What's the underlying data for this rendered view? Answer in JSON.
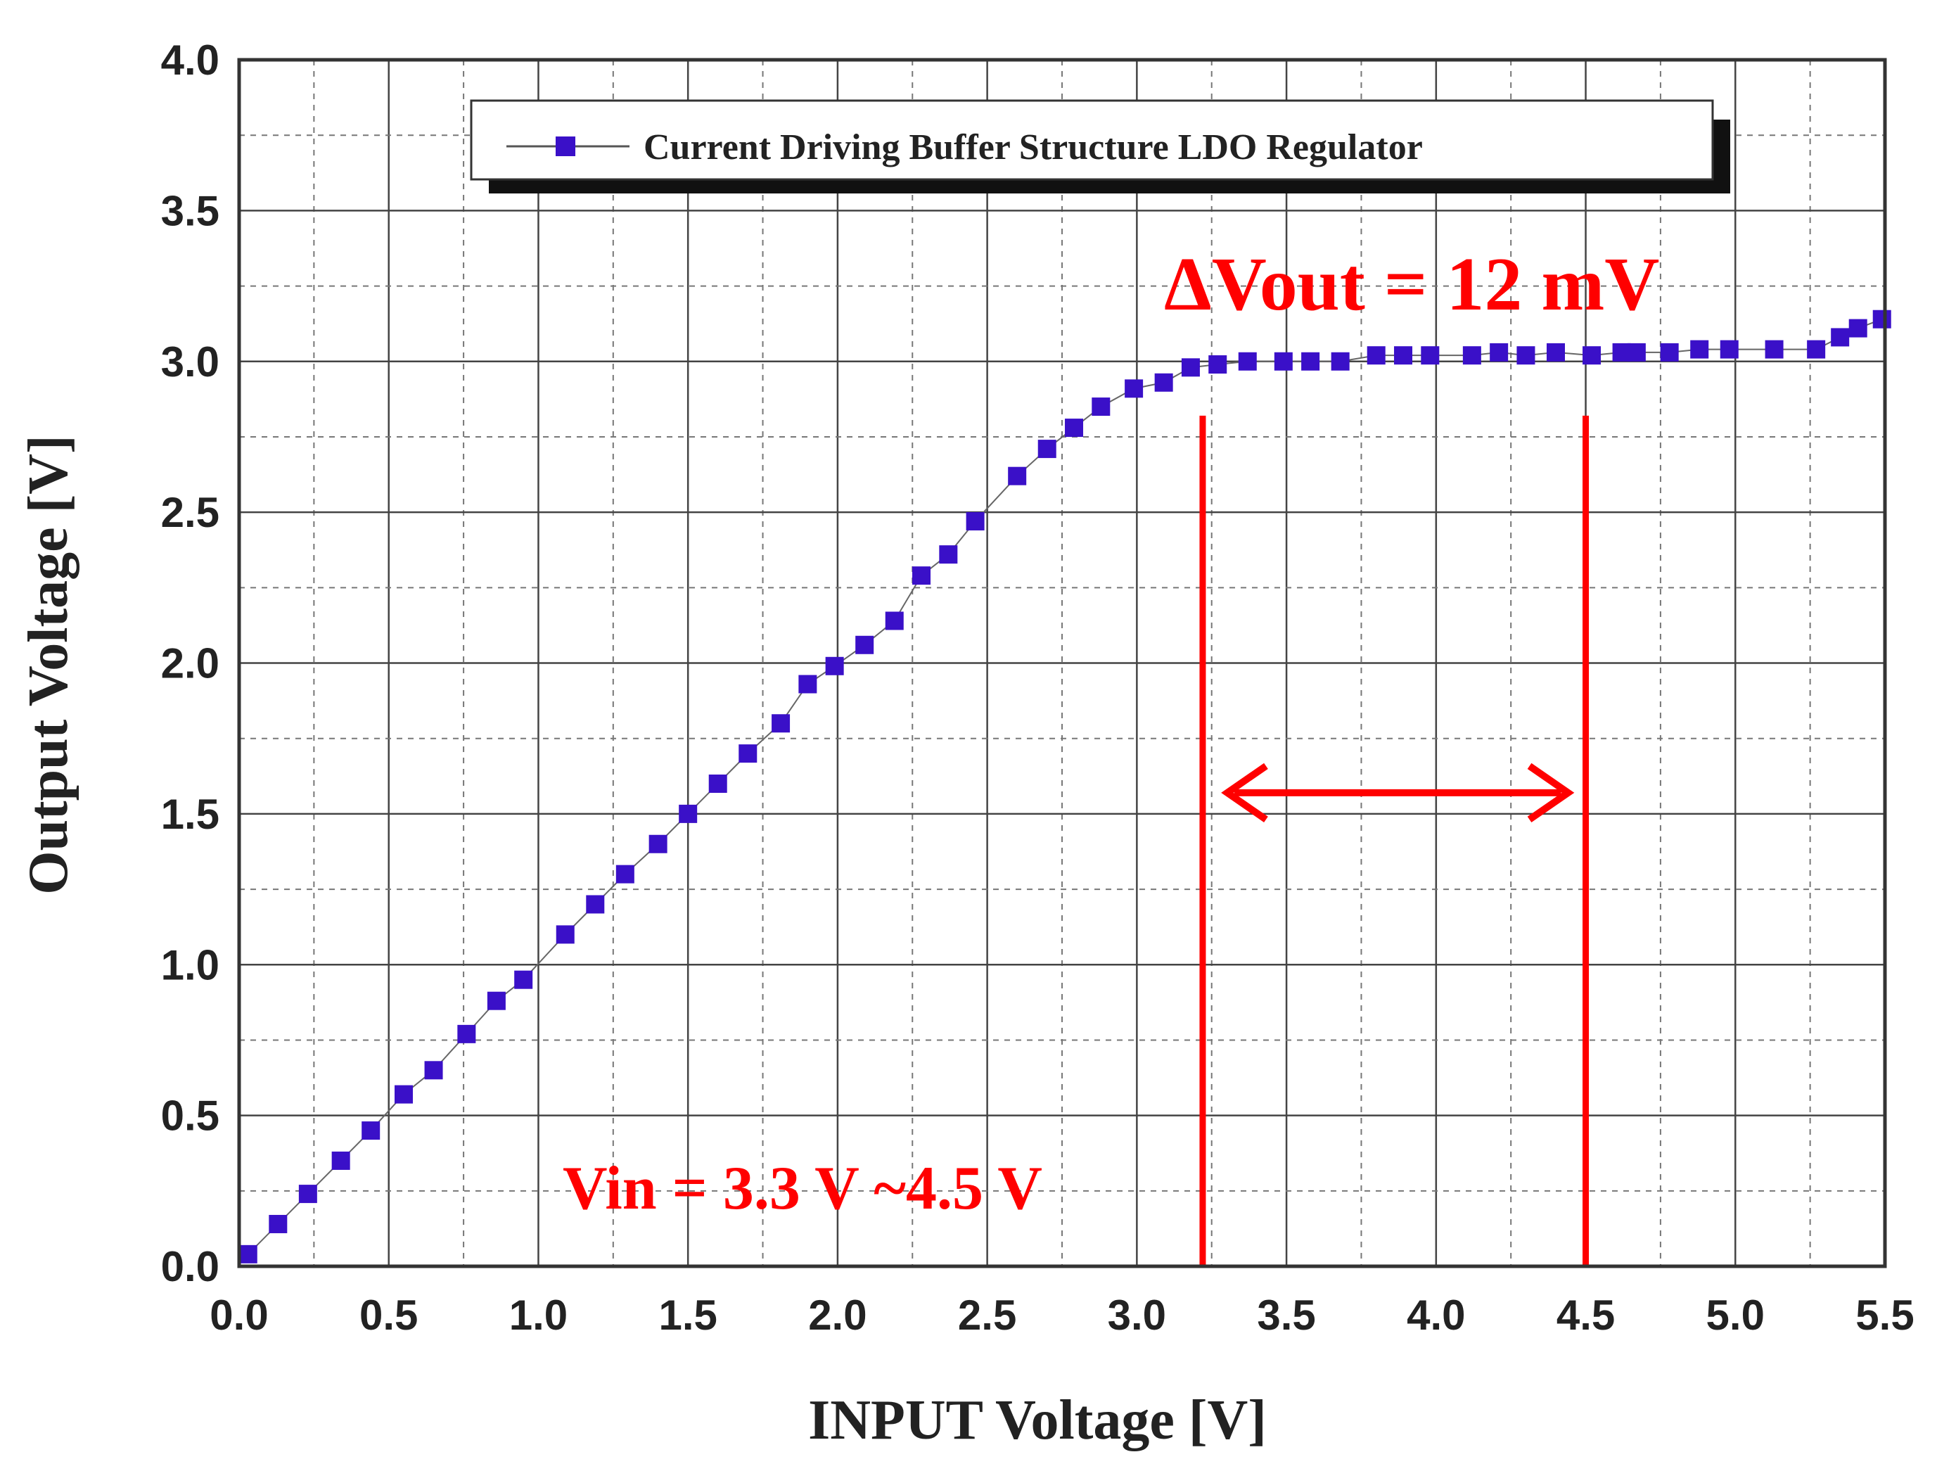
{
  "chart_data": {
    "type": "scatter",
    "title": "",
    "xlabel": "INPUT Voltage [V]",
    "ylabel": "Output Voltage [V]",
    "xlim": [
      0.0,
      5.5
    ],
    "ylim": [
      0.0,
      4.0
    ],
    "x_ticks": [
      "0.0",
      "0.5",
      "1.0",
      "1.5",
      "2.0",
      "2.5",
      "3.0",
      "3.5",
      "4.0",
      "4.5",
      "5.0",
      "5.5"
    ],
    "y_ticks": [
      "0.0",
      "0.5",
      "1.0",
      "1.5",
      "2.0",
      "2.5",
      "3.0",
      "3.5",
      "4.0"
    ],
    "grid": true,
    "legend": {
      "position": "top",
      "entries": [
        "Current Driving Buffer Structure LDO Regulator"
      ]
    },
    "series": [
      {
        "name": "Current Driving Buffer Structure LDO Regulator",
        "color": "#3a10c8",
        "marker": "square",
        "x": [
          0.03,
          0.13,
          0.23,
          0.34,
          0.44,
          0.55,
          0.65,
          0.76,
          0.86,
          0.95,
          1.09,
          1.19,
          1.29,
          1.4,
          1.5,
          1.6,
          1.7,
          1.81,
          1.9,
          1.99,
          2.09,
          2.19,
          2.28,
          2.37,
          2.46,
          2.6,
          2.7,
          2.79,
          2.88,
          2.99,
          3.09,
          3.18,
          3.27,
          3.37,
          3.49,
          3.58,
          3.68,
          3.8,
          3.89,
          3.98,
          4.12,
          4.21,
          4.3,
          4.4,
          4.52,
          4.62,
          4.67,
          4.78,
          4.88,
          4.98,
          5.13,
          5.27,
          5.35,
          5.41,
          5.49
        ],
        "y": [
          0.04,
          0.14,
          0.24,
          0.35,
          0.45,
          0.57,
          0.65,
          0.77,
          0.88,
          0.95,
          1.1,
          1.2,
          1.3,
          1.4,
          1.5,
          1.6,
          1.7,
          1.8,
          1.93,
          1.99,
          2.06,
          2.14,
          2.29,
          2.36,
          2.47,
          2.62,
          2.71,
          2.78,
          2.85,
          2.91,
          2.93,
          2.98,
          2.99,
          3.0,
          3.0,
          3.0,
          3.0,
          3.02,
          3.02,
          3.02,
          3.02,
          3.03,
          3.02,
          3.03,
          3.02,
          3.03,
          3.03,
          3.03,
          3.04,
          3.04,
          3.04,
          3.04,
          3.08,
          3.11,
          3.14
        ]
      }
    ],
    "annotations": {
      "delta_label": "ΔVout = 12 mV",
      "vin_label": "Vin = 3.3 V ~4.5 V",
      "range_start": 3.22,
      "range_end": 4.5,
      "range_line_top": 2.82,
      "arrow_y": 1.57,
      "annotation_color": "#ff0000"
    }
  }
}
